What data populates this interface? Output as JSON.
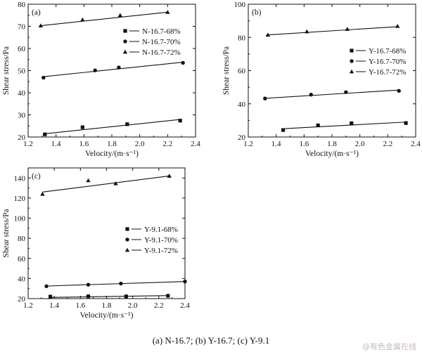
{
  "caption": "(a)  N-16.7;  (b)  Y-16.7;  (c) Y-9.1",
  "watermark": "@有色金属在线",
  "chart_data": [
    {
      "type": "scatter",
      "panel_label": "(a)",
      "xlabel": "Velocity/(m·s⁻¹)",
      "ylabel": "Shear stress/Pa",
      "xlim": [
        1.2,
        2.4
      ],
      "ylim": [
        20,
        80
      ],
      "xticks": [
        1.2,
        1.4,
        1.6,
        1.8,
        2.0,
        2.2,
        2.4
      ],
      "yticks": [
        20,
        30,
        40,
        50,
        60,
        70,
        80
      ],
      "xtick_labels": [
        "1.2",
        "1.4",
        "1.6",
        "1.8",
        "2.0",
        "2.2",
        "2.4"
      ],
      "ytick_labels": [
        "20",
        "30",
        "40",
        "50",
        "60",
        "70",
        "80"
      ],
      "legend_position": "right",
      "series": [
        {
          "name": "N-16.7-68%",
          "marker": "square",
          "x": [
            1.32,
            1.59,
            1.91,
            2.29
          ],
          "y": [
            21.2,
            24.4,
            25.8,
            27.4
          ],
          "fit": [
            [
              1.31,
              21.4
            ],
            [
              2.3,
              28.0
            ]
          ]
        },
        {
          "name": "N-16.7-70%",
          "marker": "circle",
          "x": [
            1.31,
            1.68,
            1.85,
            2.31
          ],
          "y": [
            46.8,
            50.1,
            51.4,
            53.5
          ],
          "fit": [
            [
              1.3,
              47.2
            ],
            [
              2.31,
              53.8
            ]
          ]
        },
        {
          "name": "N-16.7-72%",
          "marker": "triangle",
          "x": [
            1.29,
            1.59,
            1.86,
            2.2
          ],
          "y": [
            70.3,
            73.0,
            75.0,
            76.4
          ],
          "fit": [
            [
              1.29,
              70.3
            ],
            [
              2.2,
              76.4
            ]
          ]
        }
      ]
    },
    {
      "type": "scatter",
      "panel_label": "(b)",
      "xlabel": "Velocity/(m·s⁻¹)",
      "ylabel": "Shear stress/Pa",
      "xlim": [
        1.2,
        2.4
      ],
      "ylim": [
        20,
        100
      ],
      "xticks": [
        1.2,
        1.4,
        1.6,
        1.8,
        2.0,
        2.2,
        2.4
      ],
      "yticks": [
        20,
        40,
        60,
        80,
        100
      ],
      "xtick_labels": [
        "1.2",
        "1.4",
        "1.6",
        "1.8",
        "2.0",
        "2.2",
        "2.4"
      ],
      "ytick_labels": [
        "20",
        "40",
        "60",
        "80",
        "100"
      ],
      "legend_position": "right",
      "series": [
        {
          "name": "Y-16.7-68%",
          "marker": "square",
          "x": [
            1.45,
            1.7,
            1.94,
            2.33
          ],
          "y": [
            24.2,
            27.0,
            28.3,
            28.4
          ],
          "fit": [
            [
              1.45,
              25.0
            ],
            [
              2.33,
              29.0
            ]
          ]
        },
        {
          "name": "Y-16.7-70%",
          "marker": "circle",
          "x": [
            1.32,
            1.65,
            1.9,
            2.28
          ],
          "y": [
            43.2,
            45.5,
            47.0,
            47.8
          ],
          "fit": [
            [
              1.32,
              43.3
            ],
            [
              2.28,
              48.3
            ]
          ]
        },
        {
          "name": "Y-16.7-72%",
          "marker": "triangle",
          "x": [
            1.34,
            1.62,
            1.91,
            2.27
          ],
          "y": [
            81.5,
            83.5,
            85.0,
            86.8
          ],
          "fit": [
            [
              1.34,
              81.5
            ],
            [
              2.27,
              86.5
            ]
          ]
        }
      ]
    },
    {
      "type": "scatter",
      "panel_label": "(c)",
      "xlabel": "Velocity/(m·s⁻¹)",
      "ylabel": "Shear stress/Pa",
      "xlim": [
        1.2,
        2.4
      ],
      "ylim": [
        20,
        150
      ],
      "xticks": [
        1.2,
        1.4,
        1.6,
        1.8,
        2.0,
        2.2,
        2.4
      ],
      "yticks": [
        20,
        40,
        60,
        80,
        100,
        120,
        140
      ],
      "xtick_labels": [
        "1.2",
        "1.4",
        "1.6",
        "1.8",
        "2.0",
        "2.2",
        "2.4"
      ],
      "ytick_labels": [
        "20",
        "40",
        "60",
        "80",
        "100",
        "120",
        "140"
      ],
      "legend_position": "right",
      "series": [
        {
          "name": "Y-9.1-68%",
          "marker": "square",
          "x": [
            1.37,
            1.66,
            1.95,
            2.27
          ],
          "y": [
            22.0,
            22.3,
            22.2,
            22.8
          ],
          "fit": [
            [
              1.36,
              21.2
            ],
            [
              2.28,
              23.0
            ]
          ]
        },
        {
          "name": "Y-9.1-70%",
          "marker": "circle",
          "x": [
            1.34,
            1.66,
            1.91,
            2.4
          ],
          "y": [
            32.3,
            33.8,
            35.0,
            37.0
          ],
          "fit": [
            [
              1.34,
              32.5
            ],
            [
              2.4,
              37.0
            ]
          ]
        },
        {
          "name": "Y-9.1-72%",
          "marker": "triangle",
          "x": [
            1.31,
            1.66,
            1.87,
            2.28
          ],
          "y": [
            124.0,
            137.5,
            134.5,
            142.0
          ],
          "fit": [
            [
              1.31,
              126.0
            ],
            [
              2.28,
              142.0
            ]
          ]
        }
      ]
    }
  ]
}
